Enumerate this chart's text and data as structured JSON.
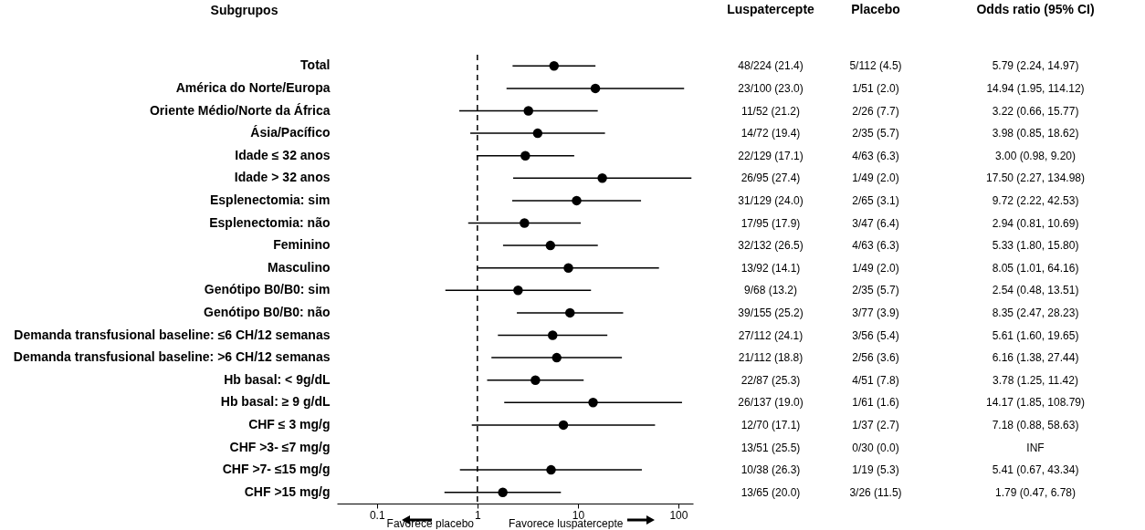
{
  "chart_data": {
    "type": "scatter",
    "orientation": "horizontal",
    "ylabel": "Subgrupos",
    "log": "x",
    "marker": "circle",
    "categories": [
      "Total",
      "América do Norte/Europa",
      "Oriente Médio/Norte da África",
      "Ásia/Pacífico",
      "Idade ≤ 32 anos",
      "Idade > 32 anos",
      "Esplenectomia: sim",
      "Esplenectomia: não",
      "Feminino",
      "Masculino",
      "Genótipo B0/B0: sim",
      "Genótipo B0/B0: não",
      "Demanda transfusional baseline: ≤6 CH/12 semanas",
      "Demanda transfusional baseline: >6 CH/12 semanas",
      "Hb basal: < 9g/dL",
      "Hb basal: ≥ 9 g/dL",
      "CHF ≤ 3 mg/g",
      "CHF >3- ≤7 mg/g",
      "CHF >7- ≤15 mg/g",
      "CHF >15 mg/g"
    ],
    "color": "#000000",
    "values": [
      5.79,
      14.94,
      3.22,
      3.98,
      3.0,
      17.5,
      9.72,
      2.94,
      5.33,
      8.05,
      2.54,
      8.35,
      5.61,
      6.16,
      3.78,
      14.17,
      7.18,
      null,
      5.41,
      1.79
    ],
    "errors": [
      [
        2.24,
        14.97
      ],
      [
        1.95,
        114.12
      ],
      [
        0.66,
        15.77
      ],
      [
        0.85,
        18.62
      ],
      [
        0.98,
        9.2
      ],
      [
        2.27,
        134.98
      ],
      [
        2.22,
        42.53
      ],
      [
        0.81,
        10.69
      ],
      [
        1.8,
        15.8
      ],
      [
        1.01,
        64.16
      ],
      [
        0.48,
        13.51
      ],
      [
        2.47,
        28.23
      ],
      [
        1.6,
        19.65
      ],
      [
        1.38,
        27.44
      ],
      [
        1.25,
        11.42
      ],
      [
        1.85,
        108.79
      ],
      [
        0.88,
        58.63
      ],
      null,
      [
        0.67,
        43.34
      ],
      [
        0.47,
        6.78
      ]
    ],
    "xlim": [
      0.04,
      140
    ],
    "xticks": [
      0.1,
      1,
      10,
      100
    ],
    "ref_lines": [
      {
        "axis": "x",
        "value": 1,
        "line_style": "dashed"
      }
    ],
    "annotations": [
      "Favorece placebo",
      "Favorece luspatercepte",
      "Luspatercepte",
      "48/224 (21.4)",
      "23/100 (23.0)",
      "11/52 (21.2)",
      "14/72 (19.4)",
      "22/129 (17.1)",
      "26/95 (27.4)",
      "31/129 (24.0)",
      "17/95 (17.9)",
      "32/132 (26.5)",
      "13/92 (14.1)",
      "9/68 (13.2)",
      "39/155 (25.2)",
      "27/112 (24.1)",
      "21/112 (18.8)",
      "22/87 (25.3)",
      "26/137 (19.0)",
      "12/70 (17.1)",
      "13/51 (25.5)",
      "10/38 (26.3)",
      "13/65 (20.0)",
      "Placebo",
      "5/112 (4.5)",
      "1/51 (2.0)",
      "2/26 (7.7)",
      "2/35 (5.7)",
      "4/63 (6.3)",
      "1/49 (2.0)",
      "2/65 (3.1)",
      "3/47 (6.4)",
      "4/63 (6.3)",
      "1/49 (2.0)",
      "2/35 (5.7)",
      "3/77 (3.9)",
      "3/56 (5.4)",
      "2/56 (3.6)",
      "4/51 (7.8)",
      "1/61 (1.6)",
      "1/37 (2.7)",
      "0/30 (0.0)",
      "1/19 (5.3)",
      "3/26 (11.5)",
      "Odds ratio (95% CI)",
      "5.79 (2.24, 14.97)",
      "14.94 (1.95, 114.12)",
      "3.22 (0.66, 15.77)",
      "3.98 (0.85, 18.62)",
      "3.00 (0.98, 9.20)",
      "17.50 (2.27, 134.98)",
      "9.72 (2.22, 42.53)",
      "2.94 (0.81, 10.69)",
      "5.33 (1.80, 15.80)",
      "8.05 (1.01, 64.16)",
      "2.54 (0.48, 13.51)",
      "8.35 (2.47, 28.23)",
      "5.61 (1.60, 19.65)",
      "6.16 (1.38, 27.44)",
      "3.78 (1.25, 11.42)",
      "14.17 (1.85, 108.79)",
      "7.18 (0.88, 58.63)",
      "INF",
      "5.41 (0.67, 43.34)",
      "1.79 (0.47, 6.78)"
    ]
  }
}
